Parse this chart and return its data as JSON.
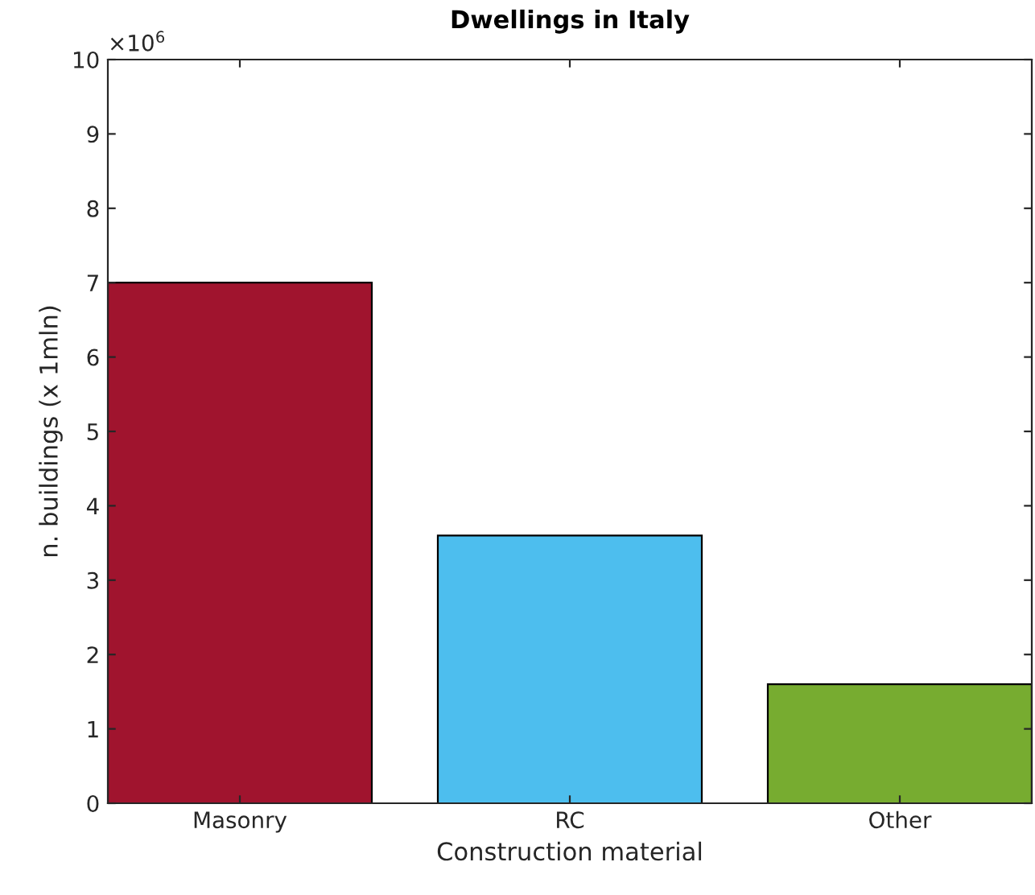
{
  "chart_data": {
    "type": "bar",
    "title": "Dwellings in Italy",
    "xlabel": "Construction material",
    "ylabel": "n. buildings (x 1mln)",
    "categories": [
      "Masonry",
      "RC",
      "Other"
    ],
    "values": [
      7.0,
      3.6,
      1.6
    ],
    "colors": [
      "#a0142e",
      "#4dbeee",
      "#77ac30"
    ],
    "ylim": [
      0,
      10
    ],
    "yticks": [
      0,
      1,
      2,
      3,
      4,
      5,
      6,
      7,
      8,
      9,
      10
    ],
    "annotations": [
      "×10$^{6}$"
    ],
    "grid": false,
    "legend": false
  }
}
